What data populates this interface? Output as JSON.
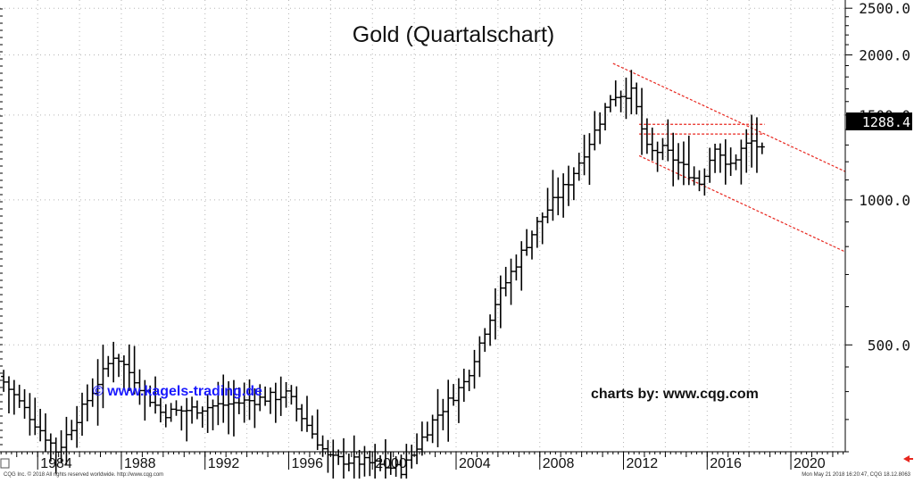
{
  "chart_data": {
    "type": "ohlc",
    "title": "Gold (Quartalschart)",
    "scale": "log",
    "ylim": [
      300,
      2600
    ],
    "xlim": [
      1982.2,
      2022.6
    ],
    "y_ticks": [
      {
        "value": 2500,
        "label": "2500.0"
      },
      {
        "value": 2000,
        "label": "2000.0"
      },
      {
        "value": 1500,
        "label": "1500.0"
      },
      {
        "value": 1000,
        "label": "1000.0"
      },
      {
        "value": 500,
        "label": "500.0"
      }
    ],
    "x_ticks": [
      {
        "value": 1984,
        "label": "1984"
      },
      {
        "value": 1988,
        "label": "1988"
      },
      {
        "value": 1992,
        "label": "1992"
      },
      {
        "value": 1996,
        "label": "1996"
      },
      {
        "value": 2000,
        "label": "2000"
      },
      {
        "value": 2004,
        "label": "2004"
      },
      {
        "value": 2008,
        "label": "2008"
      },
      {
        "value": 2012,
        "label": "2012"
      },
      {
        "value": 2016,
        "label": "2016"
      },
      {
        "value": 2020,
        "label": "2020"
      }
    ],
    "last_price": {
      "value": 1288.4,
      "label": "1288.4"
    },
    "grid": "dotted vertical and horizontal",
    "bar_color": "#000000",
    "line_color": "#e8271f",
    "key_points": [
      {
        "x": 1982.25,
        "y": 430
      },
      {
        "x": 1985.0,
        "y": 300
      },
      {
        "x": 1987.75,
        "y": 480
      },
      {
        "x": 1990.0,
        "y": 360
      },
      {
        "x": 1993.75,
        "y": 380
      },
      {
        "x": 1996.0,
        "y": 395
      },
      {
        "x": 1998.0,
        "y": 290
      },
      {
        "x": 1999.75,
        "y": 285
      },
      {
        "x": 2001.5,
        "y": 275
      },
      {
        "x": 2003.0,
        "y": 350
      },
      {
        "x": 2004.5,
        "y": 420
      },
      {
        "x": 2006.0,
        "y": 620
      },
      {
        "x": 2008.0,
        "y": 900
      },
      {
        "x": 2009.5,
        "y": 1100
      },
      {
        "x": 2010.75,
        "y": 1400
      },
      {
        "x": 2011.5,
        "y": 1650
      },
      {
        "x": 2012.5,
        "y": 1670
      },
      {
        "x": 2013.25,
        "y": 1250
      },
      {
        "x": 2014.0,
        "y": 1270
      },
      {
        "x": 2015.0,
        "y": 1160
      },
      {
        "x": 2015.75,
        "y": 1080
      },
      {
        "x": 2016.5,
        "y": 1320
      },
      {
        "x": 2017.0,
        "y": 1150
      },
      {
        "x": 2017.75,
        "y": 1280
      },
      {
        "x": 2018.25,
        "y": 1325
      },
      {
        "x": 2018.5,
        "y": 1288
      }
    ],
    "trend_lines": [
      {
        "name": "upper-channel",
        "from": [
          2011.5,
          1920
        ],
        "to": [
          2022.6,
          1145
        ],
        "style": "dashed"
      },
      {
        "name": "lower-channel",
        "from": [
          2012.75,
          1235
        ],
        "to": [
          2022.6,
          780
        ],
        "style": "dashed"
      },
      {
        "name": "resistance-top",
        "from": [
          2012.75,
          1435
        ],
        "to": [
          2018.75,
          1435
        ],
        "style": "dashed"
      },
      {
        "name": "resistance-bottom",
        "from": [
          2012.75,
          1370
        ],
        "to": [
          2018.75,
          1370
        ],
        "style": "dashed"
      }
    ]
  },
  "annotations": {
    "website": "© www.kagels-trading.de",
    "credit": "charts by: www.cqg.com"
  },
  "footer": {
    "left": "CQG Inc. © 2018 All rights reserved worldwide. http://www.cqg.com",
    "right": "Mon May 21 2018 16:20:47, CQG 18.12.8063"
  },
  "colors": {
    "website_text": "#1a1aff",
    "last_price_bg": "#000000",
    "last_price_text": "#ffffff",
    "footer_arrow": "#e8271f"
  }
}
